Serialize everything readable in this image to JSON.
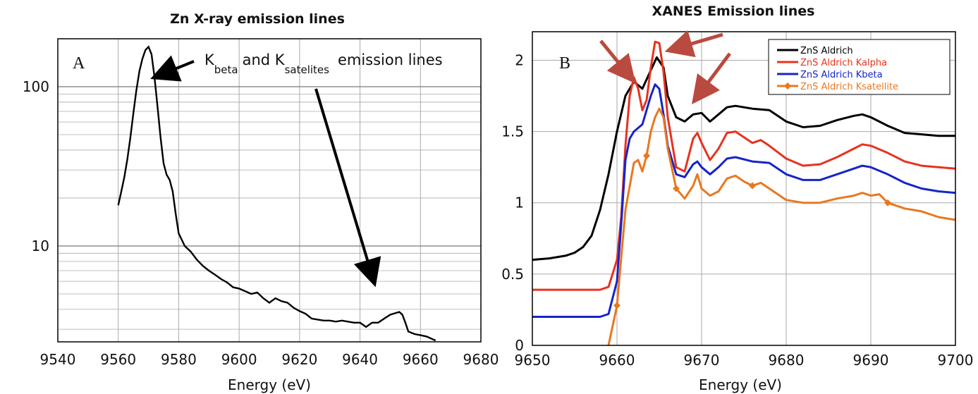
{
  "colors": {
    "black": "#000000",
    "red": "#e8321e",
    "blue": "#1624c8",
    "orange": "#e87820",
    "arrow_red": "#b94a40",
    "grid": "#aaaaaa"
  },
  "chart_data": [
    {
      "panel_label": "A",
      "type": "line",
      "title": "Zn X-ray emission lines",
      "xlabel": "Energy (eV)",
      "ylabel": "",
      "xlim": [
        9540,
        9680
      ],
      "ylim": [
        2.5,
        200
      ],
      "y_scale": "log",
      "grid": true,
      "xticks": [
        "9540",
        "9560",
        "9580",
        "9600",
        "9620",
        "9640",
        "9660",
        "9680"
      ],
      "yticks": [
        "10",
        "100"
      ],
      "annotations": [
        {
          "main": "K",
          "sub": "beta",
          "text": "and K",
          "sub2": "satelites",
          "tail": "emission lines"
        }
      ],
      "series": [
        {
          "color": "black",
          "x": [
            9560,
            9561,
            9562,
            9563,
            9564,
            9565,
            9566,
            9567,
            9568,
            9569,
            9570,
            9571,
            9572,
            9573,
            9574,
            9575,
            9576,
            9577,
            9578,
            9579,
            9580,
            9582,
            9584,
            9586,
            9588,
            9590,
            9592,
            9594,
            9596,
            9598,
            9600,
            9602,
            9604,
            9606,
            9608,
            9610,
            9612,
            9614,
            9616,
            9618,
            9620,
            9622,
            9624,
            9626,
            9628,
            9630,
            9632,
            9634,
            9636,
            9638,
            9640,
            9642,
            9644,
            9646,
            9648,
            9650,
            9652,
            9653,
            9654,
            9655,
            9656,
            9658,
            9660,
            9662,
            9664,
            9665
          ],
          "y": [
            18,
            22,
            27,
            35,
            48,
            68,
            95,
            125,
            150,
            170,
            178,
            160,
            115,
            75,
            48,
            33,
            28,
            26,
            22,
            16,
            12,
            10,
            9.2,
            8.2,
            7.5,
            7.0,
            6.6,
            6.2,
            5.9,
            5.5,
            5.4,
            5.2,
            5.0,
            5.1,
            4.7,
            4.4,
            4.7,
            4.5,
            4.4,
            4.1,
            3.9,
            3.75,
            3.5,
            3.45,
            3.4,
            3.4,
            3.35,
            3.4,
            3.35,
            3.3,
            3.3,
            3.1,
            3.3,
            3.3,
            3.5,
            3.7,
            3.8,
            3.85,
            3.7,
            3.3,
            2.9,
            2.8,
            2.75,
            2.7,
            2.6,
            2.55
          ]
        }
      ]
    },
    {
      "panel_label": "B",
      "type": "line",
      "title": "XANES Emission lines",
      "xlabel": "Energy (eV)",
      "ylabel": "",
      "xlim": [
        9650,
        9700
      ],
      "ylim": [
        0,
        2.2
      ],
      "grid": true,
      "xticks": [
        "9650",
        "9660",
        "9670",
        "9680",
        "9690",
        "9700"
      ],
      "yticks": [
        "0",
        "0.5",
        "1",
        "1.5",
        "2"
      ],
      "legend_position": "top-right",
      "series": [
        {
          "name": "ZnS Aldrich",
          "color": "black",
          "x": [
            9650,
            9652,
            9654,
            9655,
            9656,
            9657,
            9658,
            9659,
            9660,
            9661,
            9662,
            9663,
            9664,
            9664.7,
            9665.5,
            9666,
            9667,
            9668,
            9669,
            9670,
            9671,
            9672,
            9673,
            9674,
            9676,
            9678,
            9680,
            9682,
            9684,
            9686,
            9688,
            9689,
            9690,
            9692,
            9694,
            9696,
            9698,
            9700
          ],
          "y": [
            0.6,
            0.61,
            0.63,
            0.65,
            0.69,
            0.77,
            0.95,
            1.2,
            1.5,
            1.75,
            1.85,
            1.8,
            1.93,
            2.02,
            1.95,
            1.75,
            1.6,
            1.57,
            1.62,
            1.63,
            1.57,
            1.62,
            1.67,
            1.68,
            1.66,
            1.65,
            1.57,
            1.53,
            1.54,
            1.58,
            1.61,
            1.62,
            1.6,
            1.54,
            1.49,
            1.48,
            1.47,
            1.47
          ]
        },
        {
          "name": "ZnS Aldrich Kalpha",
          "color": "red",
          "x": [
            9650,
            9655,
            9658,
            9659,
            9660,
            9660.5,
            9661,
            9661.5,
            9662,
            9662.5,
            9663,
            9663.5,
            9664,
            9664.5,
            9665,
            9665.5,
            9666,
            9667,
            9668,
            9669,
            9669.5,
            9670,
            9671,
            9672,
            9673,
            9674,
            9676,
            9677,
            9678,
            9680,
            9682,
            9684,
            9686,
            9688,
            9689,
            9690,
            9692,
            9694,
            9696,
            9698,
            9700
          ],
          "y": [
            0.39,
            0.39,
            0.39,
            0.41,
            0.6,
            0.9,
            1.4,
            1.75,
            1.88,
            1.8,
            1.65,
            1.72,
            1.95,
            2.13,
            2.12,
            1.92,
            1.6,
            1.25,
            1.22,
            1.45,
            1.49,
            1.42,
            1.3,
            1.38,
            1.49,
            1.5,
            1.42,
            1.44,
            1.4,
            1.31,
            1.26,
            1.27,
            1.32,
            1.38,
            1.41,
            1.4,
            1.35,
            1.29,
            1.26,
            1.25,
            1.24
          ]
        },
        {
          "name": "ZnS Aldrich Kbeta",
          "color": "blue",
          "x": [
            9650,
            9655,
            9658,
            9659,
            9660,
            9660.5,
            9661,
            9661.5,
            9662,
            9663,
            9664,
            9664.5,
            9665,
            9665.5,
            9666,
            9667,
            9668,
            9669,
            9669.5,
            9670,
            9671,
            9672,
            9673,
            9674,
            9676,
            9678,
            9680,
            9682,
            9684,
            9686,
            9688,
            9689,
            9690,
            9692,
            9694,
            9696,
            9698,
            9700
          ],
          "y": [
            0.2,
            0.2,
            0.2,
            0.22,
            0.45,
            0.85,
            1.3,
            1.45,
            1.5,
            1.55,
            1.75,
            1.83,
            1.8,
            1.62,
            1.4,
            1.2,
            1.18,
            1.27,
            1.29,
            1.25,
            1.2,
            1.25,
            1.31,
            1.32,
            1.29,
            1.28,
            1.2,
            1.16,
            1.16,
            1.2,
            1.24,
            1.26,
            1.25,
            1.2,
            1.14,
            1.1,
            1.08,
            1.07
          ]
        },
        {
          "name": "ZnS Aldrich Ksatellite",
          "color": "orange",
          "x": [
            9659,
            9660,
            9661,
            9662,
            9662.5,
            9663,
            9663.5,
            9664,
            9664.5,
            9665,
            9665.5,
            9666,
            9667,
            9668,
            9669,
            9669.5,
            9670,
            9671,
            9672,
            9673,
            9674,
            9675,
            9676,
            9677,
            9678,
            9680,
            9682,
            9684,
            9686,
            9688,
            9689,
            9690,
            9691,
            9692,
            9694,
            9696,
            9698,
            9700
          ],
          "y": [
            0,
            0.28,
            0.95,
            1.28,
            1.3,
            1.22,
            1.33,
            1.5,
            1.6,
            1.66,
            1.6,
            1.38,
            1.1,
            1.03,
            1.12,
            1.2,
            1.1,
            1.05,
            1.08,
            1.17,
            1.19,
            1.15,
            1.12,
            1.14,
            1.1,
            1.02,
            1.0,
            1.0,
            1.03,
            1.05,
            1.07,
            1.05,
            1.06,
            1.0,
            0.96,
            0.94,
            0.9,
            0.88
          ]
        }
      ]
    }
  ]
}
